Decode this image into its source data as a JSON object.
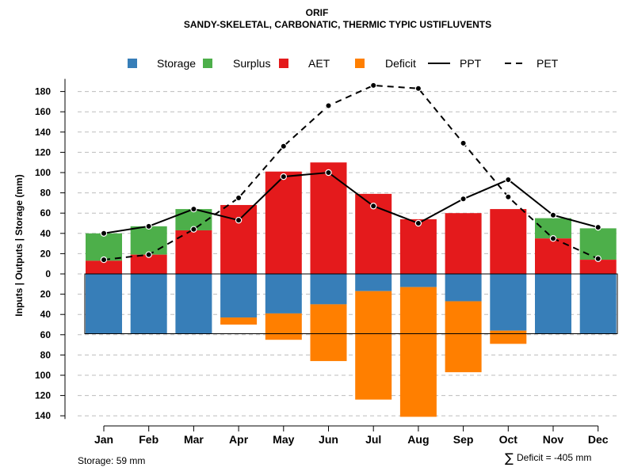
{
  "chart_data": {
    "type": "bar",
    "title": "ORIF",
    "subtitle": "SANDY-SKELETAL, CARBONATIC, THERMIC TYPIC USTIFLUVENTS",
    "ylabel": "Inputs | Outputs | Storage    (mm)",
    "categories": [
      "Jan",
      "Feb",
      "Mar",
      "Apr",
      "May",
      "Jun",
      "Jul",
      "Aug",
      "Sep",
      "Oct",
      "Nov",
      "Dec"
    ],
    "ylim_top": [
      0,
      180
    ],
    "ylim_bottom": [
      0,
      140
    ],
    "yticks_top": [
      0,
      20,
      40,
      60,
      80,
      100,
      120,
      140,
      160,
      180
    ],
    "yticks_bottom": [
      20,
      40,
      60,
      80,
      100,
      120,
      140
    ],
    "ytick_labels_top": [
      "0",
      "20",
      "40",
      "60",
      "80",
      "100",
      "120",
      "140",
      "160",
      "180"
    ],
    "ytick_labels_bottom": [
      "20",
      "40",
      "60",
      "80",
      "100",
      "120",
      "140"
    ],
    "storage_capacity": 59,
    "series": [
      {
        "name": "Storage",
        "color": "#377EB8",
        "values": [
          59,
          59,
          59,
          43,
          39,
          30,
          17,
          13,
          27,
          56,
          59,
          59
        ]
      },
      {
        "name": "Surplus",
        "color": "#4DAF4A",
        "values": [
          27,
          28,
          21,
          0,
          0,
          0,
          0,
          0,
          0,
          0,
          20,
          31
        ]
      },
      {
        "name": "AET",
        "color": "#E41A1C",
        "values": [
          13,
          19,
          43,
          68,
          101,
          110,
          79,
          54,
          60,
          64,
          35,
          14
        ]
      },
      {
        "name": "Deficit",
        "color": "#FF7F00",
        "values": [
          0,
          0,
          0,
          7,
          26,
          56,
          107,
          128,
          70,
          13,
          0,
          0
        ]
      },
      {
        "name": "PPT",
        "color": "#000000",
        "style": "solid",
        "values": [
          40,
          47,
          64,
          53,
          96,
          100,
          67,
          50,
          74,
          93,
          58,
          46
        ]
      },
      {
        "name": "PET",
        "color": "#000000",
        "style": "dashed",
        "values": [
          14,
          19,
          44,
          75,
          126,
          166,
          186,
          183,
          129,
          76,
          35,
          15
        ]
      }
    ],
    "legend": [
      "Storage",
      "Surplus",
      "AET",
      "Deficit",
      "PPT",
      "PET"
    ],
    "legend_position": "top",
    "grid": true
  },
  "footer": {
    "storage_label": "Storage: 59 mm",
    "deficit_symbol": "∑",
    "deficit_label": "Deficit = -405 mm"
  }
}
